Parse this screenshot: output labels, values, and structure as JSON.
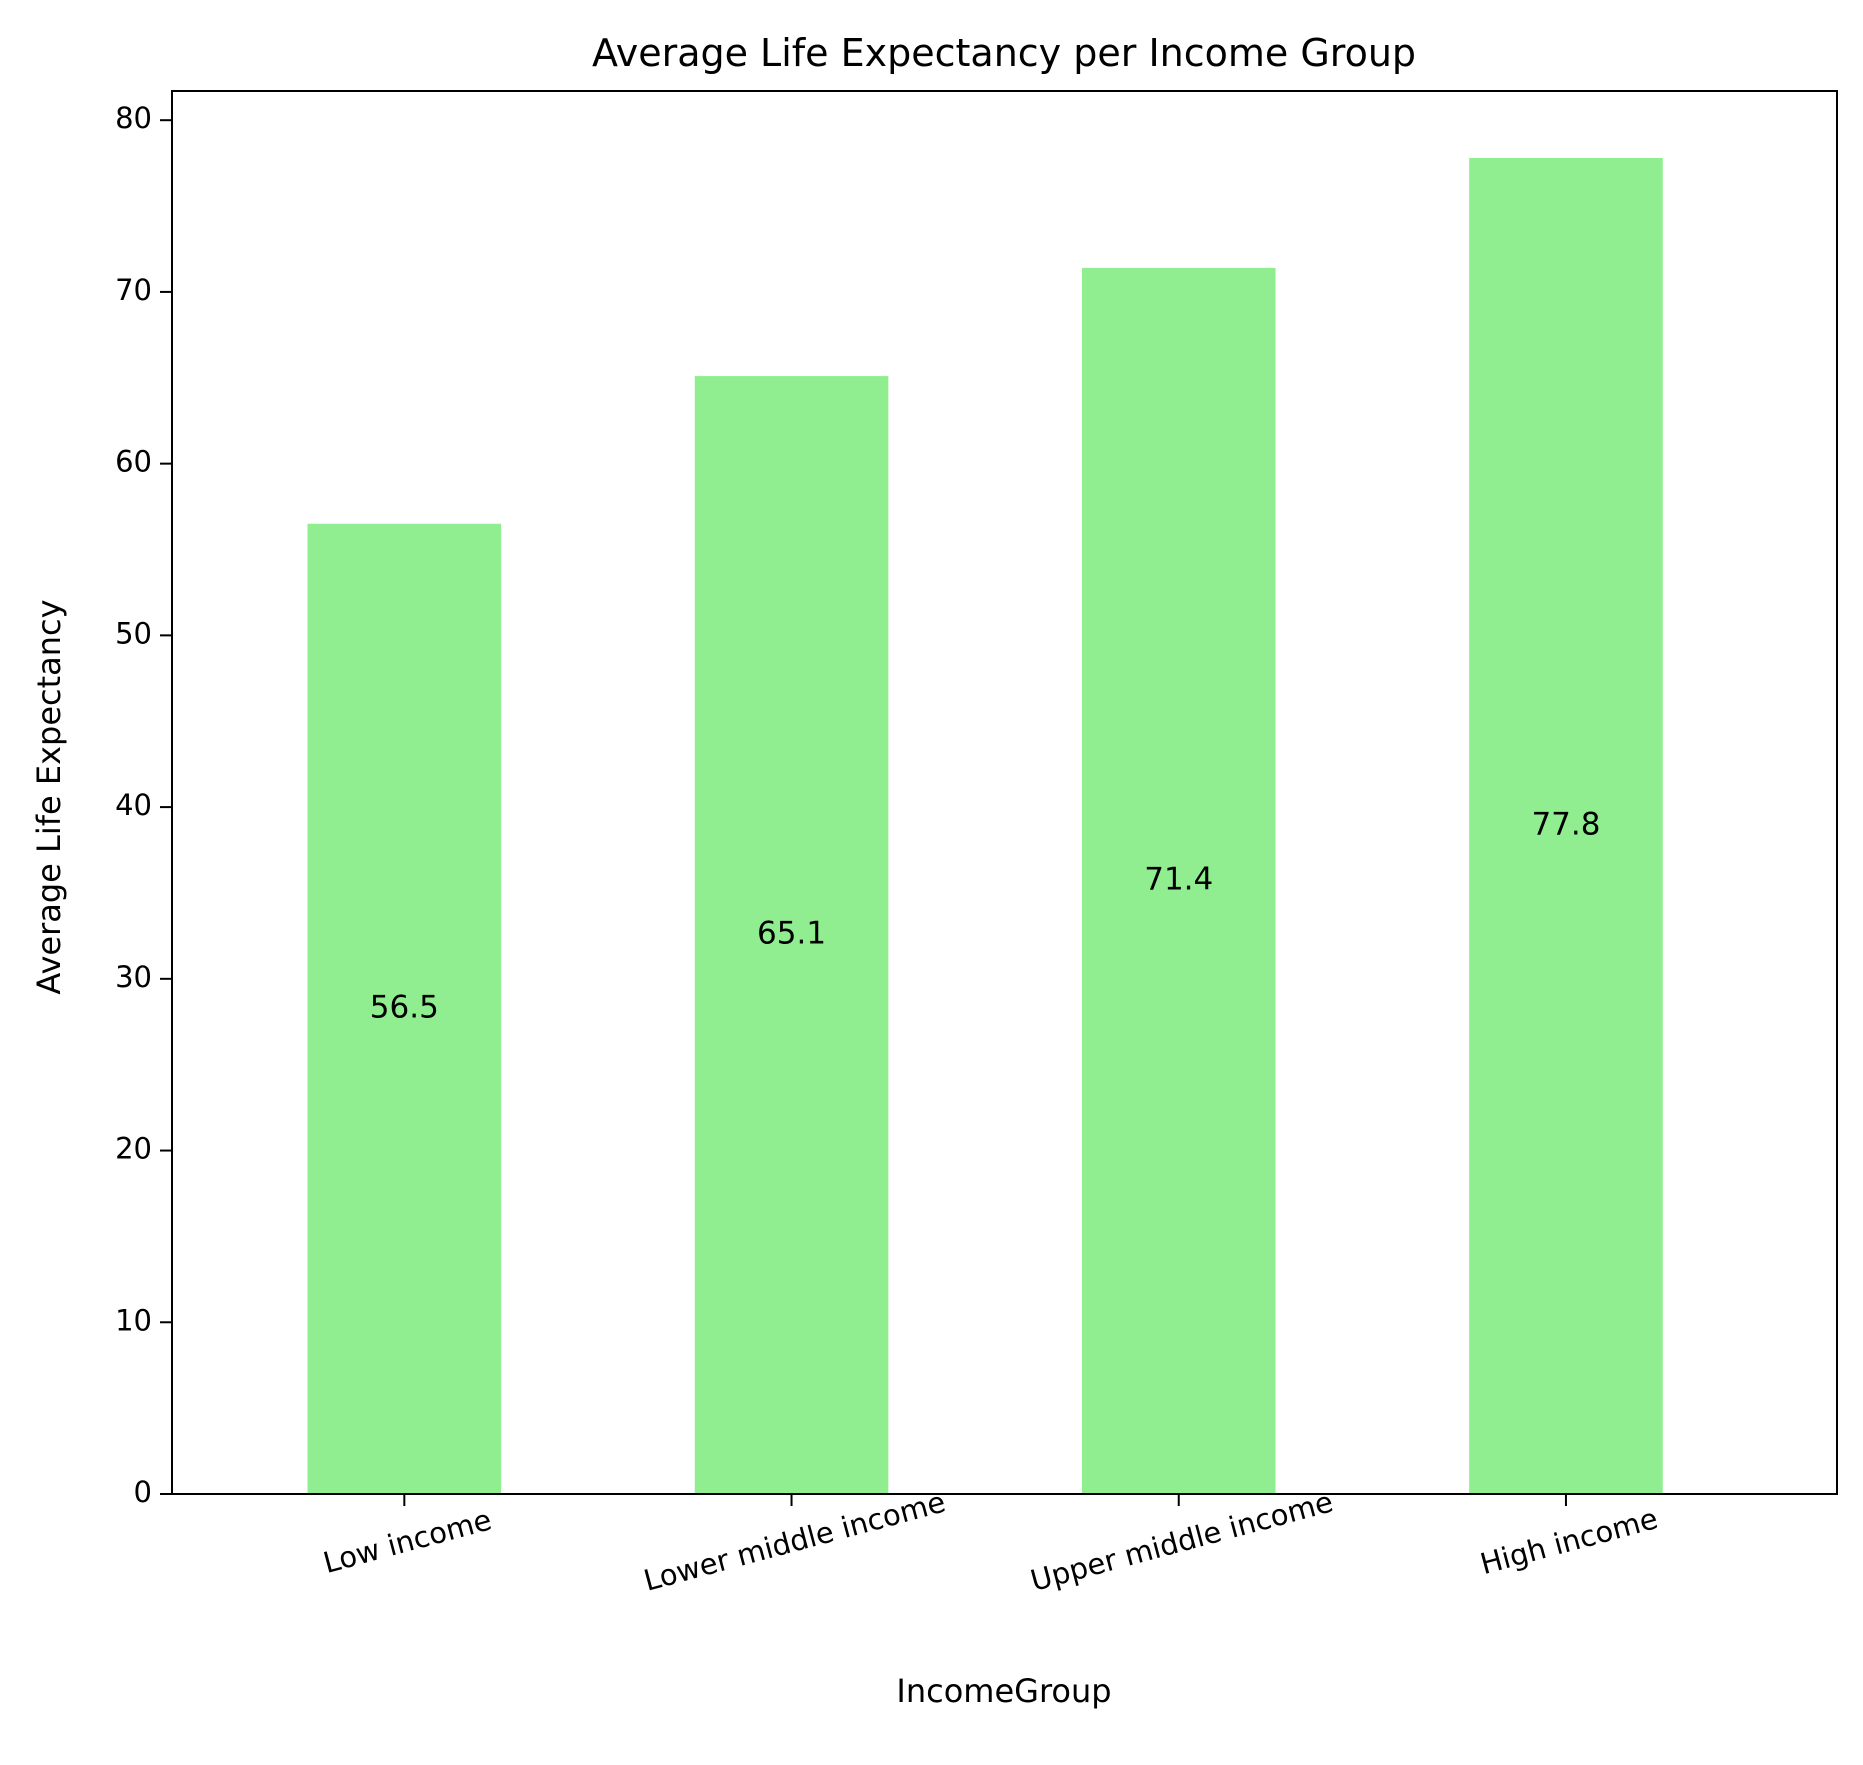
{
  "chart_data": {
    "type": "bar",
    "title": "Average Life Expectancy per Income Group",
    "xlabel": "IncomeGroup",
    "ylabel": "Average Life Expectancy",
    "categories": [
      "Low income",
      "Lower middle income",
      "Upper middle income",
      "High income"
    ],
    "values": [
      56.5,
      65.1,
      71.4,
      77.8
    ],
    "data_labels": [
      "56.5",
      "65.1",
      "71.4",
      "77.8"
    ],
    "ylim": [
      0,
      81.7
    ],
    "yticks": [
      0,
      10,
      20,
      30,
      40,
      50,
      60,
      70,
      80
    ],
    "ytick_labels": [
      "0",
      "10",
      "20",
      "30",
      "40",
      "50",
      "60",
      "70",
      "80"
    ],
    "xtick_rotation_deg": 15,
    "data_label_position": "bar middle",
    "grid": false,
    "legend": "none",
    "bar_color": "#90ee90"
  }
}
